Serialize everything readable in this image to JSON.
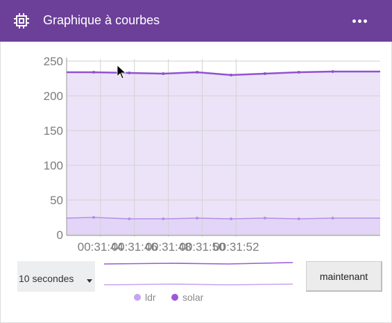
{
  "header": {
    "title": "Graphique à courbes",
    "accent": "#6c3f99",
    "chip_icon": "chip-icon",
    "menu_icon": "more-horizontal-icon"
  },
  "controls": {
    "period_value": "10 secondes",
    "now_label": "maintenant"
  },
  "legend": [
    {
      "label": "ldr",
      "color": "#c7a4f0"
    },
    {
      "label": "solar",
      "color": "#9b59d8"
    }
  ],
  "chart_data": {
    "type": "area",
    "x_ticks": [
      "00:31:44",
      "00:31:46",
      "00:31:48",
      "00:31:50",
      "00:31:52"
    ],
    "y_ticks": [
      0,
      50,
      100,
      150,
      200,
      250
    ],
    "ylim": [
      0,
      250
    ],
    "grid": true,
    "x_times": [
      0,
      1.6,
      3.7,
      5.7,
      7.7,
      9.7,
      11.7,
      13.7,
      15.7,
      18.5
    ],
    "tick_times": [
      2,
      4,
      6,
      8,
      10
    ],
    "xlim": [
      0,
      18.5
    ],
    "series": [
      {
        "name": "solar",
        "color": "#8f52d1",
        "fill": "#ece3f8",
        "values": [
          234,
          234,
          233,
          232,
          234,
          230,
          232,
          234,
          235,
          235
        ]
      },
      {
        "name": "ldr",
        "color": "#b48fe6",
        "fill": "#e3d5f7",
        "values": [
          24,
          25,
          23,
          23,
          24,
          23,
          24,
          23,
          24,
          24
        ]
      }
    ]
  }
}
